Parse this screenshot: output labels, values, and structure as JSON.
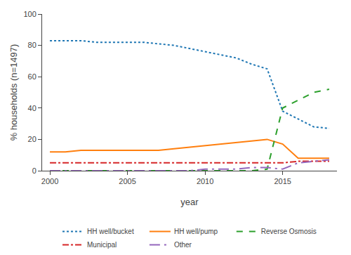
{
  "chart_data": {
    "type": "line",
    "xlabel": "year",
    "ylabel": "% households (n=1497)",
    "x": [
      2000,
      2001,
      2002,
      2003,
      2004,
      2005,
      2006,
      2007,
      2008,
      2009,
      2010,
      2011,
      2012,
      2013,
      2014,
      2015,
      2016,
      2017,
      2018
    ],
    "series": [
      {
        "name": "HH well/bucket",
        "line_style": "dot",
        "values": [
          83,
          83,
          83,
          82,
          82,
          82,
          82,
          81,
          80,
          78,
          76,
          74,
          72,
          68,
          65,
          38,
          33,
          28,
          27
        ]
      },
      {
        "name": "HH well/pump",
        "line_style": "solid",
        "values": [
          12,
          12,
          13,
          13,
          13,
          13,
          13,
          13,
          14,
          15,
          16,
          17,
          18,
          19,
          20,
          17,
          8,
          8,
          8
        ]
      },
      {
        "name": "Reverse Osmosis",
        "line_style": "dash",
        "values": [
          0,
          0,
          0,
          0,
          0,
          0,
          0,
          0,
          0,
          0,
          0,
          0,
          0,
          0,
          1,
          40,
          45,
          50,
          52
        ]
      },
      {
        "name": "Municipal",
        "line_style": "dashdot",
        "values": [
          5,
          5,
          5,
          5,
          5,
          5,
          5,
          5,
          5,
          5,
          5,
          5,
          5,
          5,
          5,
          5,
          6,
          6,
          6
        ]
      },
      {
        "name": "Other",
        "line_style": "longdashdot",
        "values": [
          0,
          0,
          0,
          0,
          0,
          0,
          0,
          0,
          0,
          0,
          1,
          1,
          1,
          2,
          2,
          1,
          5,
          6,
          7
        ]
      }
    ],
    "xlim": [
      1999.5,
      2018.5
    ],
    "ylim": [
      0,
      100
    ],
    "xticks": [
      2000,
      2005,
      2010,
      2015
    ],
    "yticks": [
      0,
      20,
      40,
      60,
      80,
      100
    ],
    "grid": false,
    "legend": "bottom"
  }
}
